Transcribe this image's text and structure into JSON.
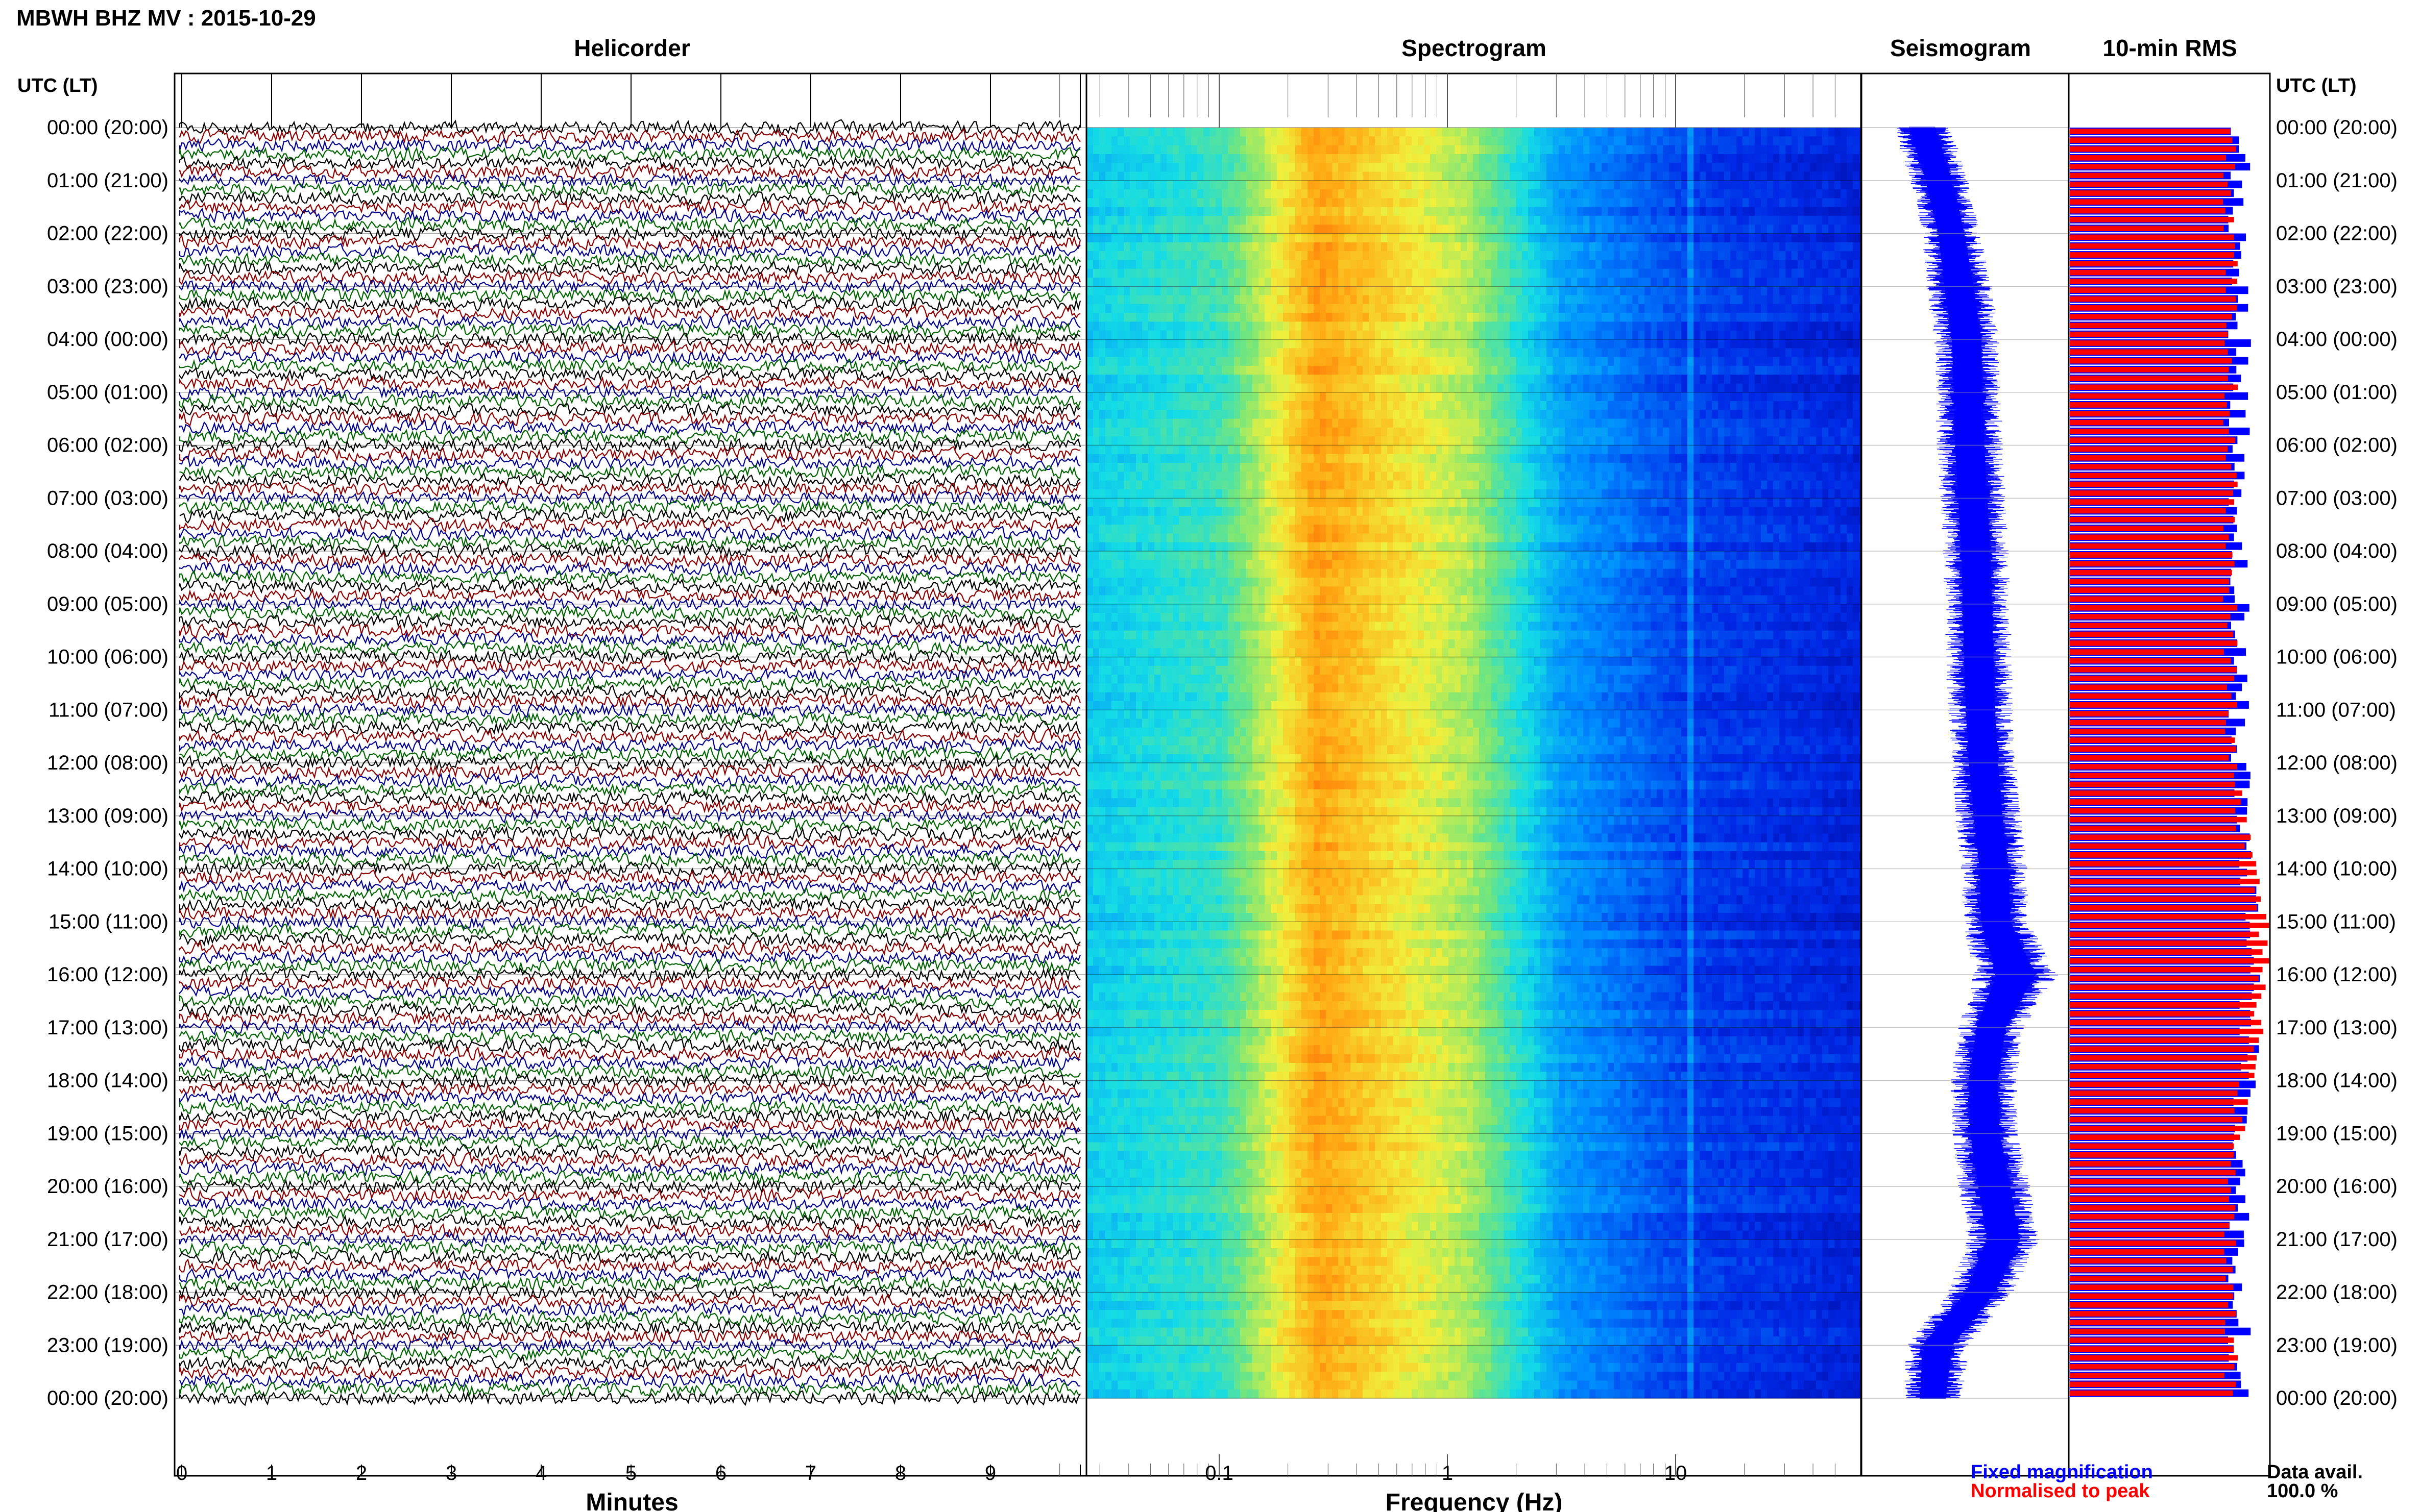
{
  "header": {
    "title": "MBWH BHZ MV : 2015-10-29",
    "utc_label_left": "UTC (LT)",
    "utc_label_right": "UTC (LT)"
  },
  "panels": {
    "helicorder": "Helicorder",
    "spectrogram": "Spectrogram",
    "seismogram": "Seismogram",
    "rms": "10-min RMS"
  },
  "axes": {
    "minutes_label": "Minutes",
    "frequency_label": "Frequency (Hz)",
    "minute_ticks": [
      "0",
      "1",
      "2",
      "3",
      "4",
      "5",
      "6",
      "7",
      "8",
      "9"
    ],
    "frequency_ticks": [
      "0.1",
      "1",
      "10"
    ]
  },
  "time_labels": [
    "00:00 (20:00)",
    "01:00 (21:00)",
    "02:00 (22:00)",
    "03:00 (23:00)",
    "04:00 (00:00)",
    "05:00 (01:00)",
    "06:00 (02:00)",
    "07:00 (03:00)",
    "08:00 (04:00)",
    "09:00 (05:00)",
    "10:00 (06:00)",
    "11:00 (07:00)",
    "12:00 (08:00)",
    "13:00 (09:00)",
    "14:00 (10:00)",
    "15:00 (11:00)",
    "16:00 (12:00)",
    "17:00 (13:00)",
    "18:00 (14:00)",
    "19:00 (15:00)",
    "20:00 (16:00)",
    "21:00 (17:00)",
    "22:00 (18:00)",
    "23:00 (19:00)",
    "00:00 (20:00)"
  ],
  "legend": {
    "fixed": "Fixed magnification",
    "normalised": "Normalised to peak",
    "data_avail_label": "Data avail.",
    "data_avail_value": "100.0 %"
  },
  "colors": {
    "fixed_magnification": "#0000ff",
    "normalised_to_peak": "#ff0000",
    "trace_cycle": [
      "#000000",
      "#8b0000",
      "#00008b",
      "#006400"
    ]
  },
  "chart_data": [
    {
      "type": "line",
      "panel": "Helicorder",
      "xlabel": "Minutes",
      "x_range_minutes": [
        0,
        10
      ],
      "lines_per_hour": 6,
      "hours": 24,
      "trace_colors": [
        "#000000",
        "#8b0000",
        "#00008b",
        "#006400"
      ]
    },
    {
      "type": "heatmap",
      "panel": "Spectrogram",
      "xlabel": "Frequency (Hz)",
      "x_scale": "log",
      "x_range_hz": [
        0.02,
        50
      ],
      "y_range_hours_utc": [
        0,
        24
      ],
      "peak_frequency_hz": 0.27,
      "spectral_line_hz": 11.5
    },
    {
      "type": "line",
      "panel": "Seismogram",
      "y_range_hours_utc": [
        0,
        24
      ],
      "centre_offset": [
        0.5,
        1.6,
        2.4,
        2.9,
        3.4,
        3.5,
        3.6,
        3.8,
        4.0,
        4.1,
        4.2,
        4.3,
        4.5,
        4.8,
        5.2,
        5.3,
        6.6,
        5.0,
        4.5,
        4.6,
        5.2,
        5.8,
        4.3,
        1.5,
        1.2
      ],
      "half_width": [
        0.8,
        0.8,
        0.8,
        0.9,
        0.9,
        0.9,
        0.9,
        0.9,
        0.9,
        0.9,
        0.9,
        0.9,
        0.9,
        0.9,
        0.9,
        0.9,
        1.2,
        0.9,
        0.9,
        0.9,
        1.0,
        1.0,
        0.9,
        0.9,
        0.8
      ]
    },
    {
      "type": "bar",
      "panel": "10-min RMS",
      "y_range_hours_utc": [
        0,
        24
      ],
      "bars_per_hour": 6,
      "series": [
        {
          "name": "Fixed magnification",
          "color": "#0000ff"
        },
        {
          "name": "Normalised to peak",
          "color": "#ff0000"
        }
      ],
      "normalised_peak_hour_utc": 15.8
    }
  ]
}
